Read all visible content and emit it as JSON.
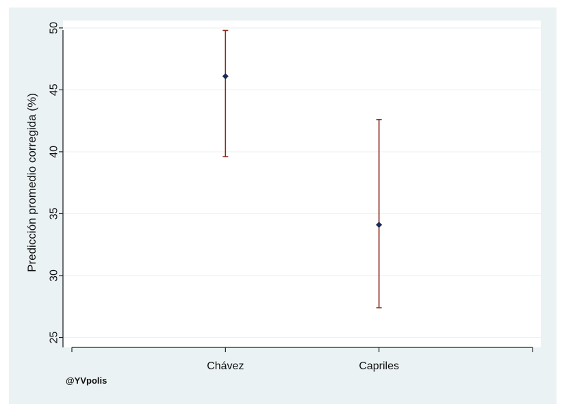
{
  "chart_data": {
    "type": "scatter",
    "subtype": "point-with-error-bars",
    "categories": [
      "Chávez",
      "Capriles"
    ],
    "series": [
      {
        "values": [
          46.1,
          34.1
        ],
        "lower": [
          39.6,
          27.4
        ],
        "upper": [
          49.8,
          42.6
        ]
      }
    ],
    "ylabel": "Predicción promedio corregida (%)",
    "xlabel": "",
    "yticks": [
      25,
      30,
      35,
      40,
      45,
      50
    ],
    "ylim": [
      24.2,
      50.6
    ],
    "grid": true,
    "legend": "none",
    "credit": "@YVpolis",
    "colors": {
      "background": "#eaf2f3",
      "plot_area": "#ffffff",
      "gridline": "#eaf2f3",
      "marker": "#1a2c55",
      "error_bar": "#8b2a1e",
      "axis": "#222222"
    }
  }
}
